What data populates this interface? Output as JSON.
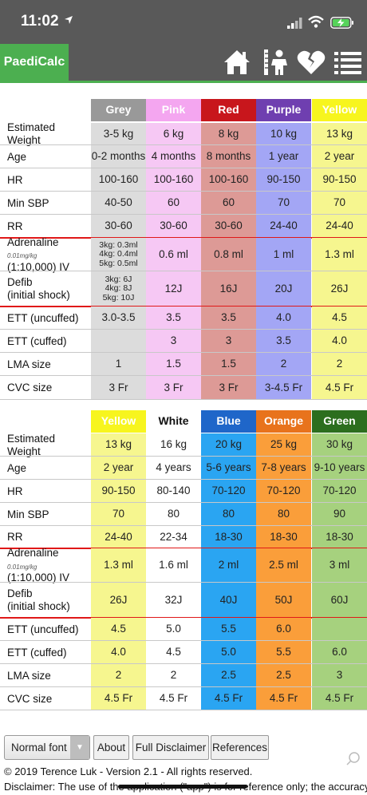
{
  "status_bar": {
    "time": "11:02",
    "location_icon": "location-arrow-icon",
    "icons": [
      "signal-icon",
      "wifi-icon",
      "battery-charging-icon"
    ]
  },
  "app": {
    "brand": "PaediCalc",
    "nav_icons": [
      "home-icon",
      "child-measure-icon",
      "broken-heart-icon",
      "menu-icon"
    ],
    "colors": {
      "green": "#4caf50",
      "header": "#595959"
    }
  },
  "table1": {
    "columns": [
      {
        "label": "Grey",
        "head_bg": "#999999",
        "head_fg": "#ffffff",
        "bg": "#dcdcdc"
      },
      {
        "label": "Pink",
        "head_bg": "#f4a6f0",
        "head_fg": "#ffffff",
        "bg": "#f6c8f4"
      },
      {
        "label": "Red",
        "head_bg": "#c8161c",
        "head_fg": "#ffffff",
        "bg": "#dd9a96"
      },
      {
        "label": "Purple",
        "head_bg": "#6f3fb0",
        "head_fg": "#ffffff",
        "bg": "#a3a6f5"
      },
      {
        "label": "Yellow",
        "head_bg": "#f7f51e",
        "head_fg": "#ffffff",
        "bg": "#f6f68f"
      }
    ],
    "rows": [
      {
        "label": "Estimated Weight",
        "values": [
          "3-5 kg",
          "6 kg",
          "8 kg",
          "10 kg",
          "13 kg"
        ]
      },
      {
        "label": "Age",
        "values": [
          "0-2 months",
          "4 months",
          "8 months",
          "1 year",
          "2 year"
        ]
      },
      {
        "label": "HR",
        "values": [
          "100-160",
          "100-160",
          "100-160",
          "90-150",
          "90-150"
        ]
      },
      {
        "label": "Min SBP",
        "values": [
          "40-50",
          "60",
          "60",
          "70",
          "70"
        ]
      },
      {
        "label": "RR",
        "values": [
          "30-60",
          "30-60",
          "30-60",
          "24-40",
          "24-40"
        ]
      },
      {
        "label": "Adrenaline",
        "label_small": "0.01mg/kg",
        "label2": "(1:10,000) IV",
        "values": [
          "3kg: 0.3ml\n4kg: 0.4ml\n5kg: 0.5ml",
          "0.6 ml",
          "0.8 ml",
          "1 ml",
          "1.3 ml"
        ]
      },
      {
        "label": "Defib",
        "label2": "(initial shock)",
        "values": [
          "3kg: 6J\n4kg: 8J\n5kg: 10J",
          "12J",
          "16J",
          "20J",
          "26J"
        ]
      },
      {
        "label": "ETT (uncuffed)",
        "values": [
          "3.0-3.5",
          "3.5",
          "3.5",
          "4.0",
          "4.5"
        ]
      },
      {
        "label": "ETT (cuffed)",
        "values": [
          "",
          "3",
          "3",
          "3.5",
          "4.0"
        ]
      },
      {
        "label": "LMA size",
        "values": [
          "1",
          "1.5",
          "1.5",
          "2",
          "2"
        ]
      },
      {
        "label": "CVC size",
        "values": [
          "3 Fr",
          "3 Fr",
          "3 Fr",
          "3-4.5 Fr",
          "4.5 Fr"
        ]
      }
    ]
  },
  "table2": {
    "columns": [
      {
        "label": "Yellow",
        "head_bg": "#f7f51e",
        "head_fg": "#ffffff",
        "bg": "#f6f68f"
      },
      {
        "label": "White",
        "head_bg": "#ffffff",
        "head_fg": "#111111",
        "bg": "#ffffff"
      },
      {
        "label": "Blue",
        "head_bg": "#1f66c9",
        "head_fg": "#ffffff",
        "bg": "#2aa5f2"
      },
      {
        "label": "Orange",
        "head_bg": "#e8731c",
        "head_fg": "#ffffff",
        "bg": "#fa9e3a"
      },
      {
        "label": "Green",
        "head_bg": "#2c6e1e",
        "head_fg": "#ffffff",
        "bg": "#a6d17e"
      }
    ],
    "rows": [
      {
        "label": "Estimated Weight",
        "values": [
          "13 kg",
          "16 kg",
          "20 kg",
          "25 kg",
          "30 kg"
        ]
      },
      {
        "label": "Age",
        "values": [
          "2 year",
          "4 years",
          "5-6 years",
          "7-8 years",
          "9-10 years"
        ]
      },
      {
        "label": "HR",
        "values": [
          "90-150",
          "80-140",
          "70-120",
          "70-120",
          "70-120"
        ]
      },
      {
        "label": "Min SBP",
        "values": [
          "70",
          "80",
          "80",
          "80",
          "90"
        ]
      },
      {
        "label": "RR",
        "values": [
          "24-40",
          "22-34",
          "18-30",
          "18-30",
          "18-30"
        ]
      },
      {
        "label": "Adrenaline",
        "label_small": "0.01mg/kg",
        "label2": "(1:10,000) IV",
        "values": [
          "1.3 ml",
          "1.6 ml",
          "2 ml",
          "2.5 ml",
          "3 ml"
        ]
      },
      {
        "label": "Defib",
        "label2": "(initial shock)",
        "values": [
          "26J",
          "32J",
          "40J",
          "50J",
          "60J"
        ]
      },
      {
        "label": "ETT (uncuffed)",
        "values": [
          "4.5",
          "5.0",
          "5.5",
          "6.0",
          ""
        ]
      },
      {
        "label": "ETT (cuffed)",
        "values": [
          "4.0",
          "4.5",
          "5.0",
          "5.5",
          "6.0"
        ]
      },
      {
        "label": "LMA size",
        "values": [
          "2",
          "2",
          "2.5",
          "2.5",
          "3"
        ]
      },
      {
        "label": "CVC size",
        "values": [
          "4.5 Fr",
          "4.5 Fr",
          "4.5 Fr",
          "4.5 Fr",
          "4.5 Fr"
        ]
      }
    ]
  },
  "footer": {
    "font_select": "Normal font",
    "buttons": [
      "About",
      "Full Disclaimer",
      "References"
    ],
    "copyright": "© 2019 Terence Luk - Version 2.1 - All rights reserved.",
    "disclaimer": "Disclaimer: The use of the application (\"app\") is for reference only; the accuracy",
    "search_icon": "magnifier-icon"
  }
}
